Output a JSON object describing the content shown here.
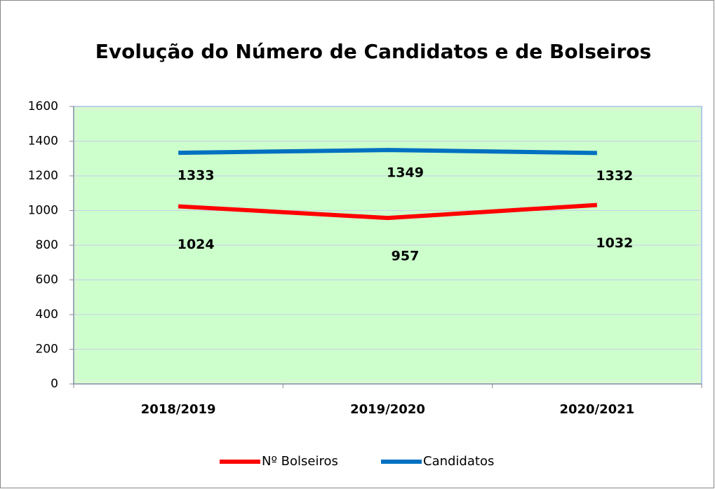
{
  "chart_data": {
    "type": "line",
    "title": "Evolução do Número de Candidatos e de Bolseiros",
    "categories": [
      "2018/2019",
      "2019/2020",
      "2020/2021"
    ],
    "series": [
      {
        "name": "Nº Bolseiros",
        "color": "#ff0000",
        "values": [
          1024,
          957,
          1032
        ]
      },
      {
        "name": "Candidatos",
        "color": "#0070c0",
        "values": [
          1333,
          1349,
          1332
        ]
      }
    ],
    "ylim": [
      0,
      1600
    ],
    "yticks": [
      0,
      200,
      400,
      600,
      800,
      1000,
      1200,
      1400,
      1600
    ],
    "grid": true,
    "legend": "bottom",
    "plot_background": "#ccffcc"
  }
}
